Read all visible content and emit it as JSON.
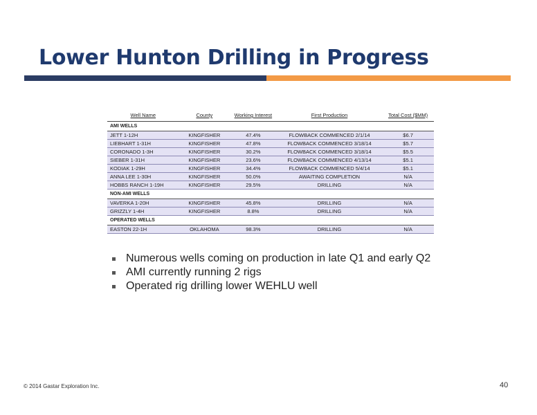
{
  "title": "Lower Hunton Drilling in Progress",
  "colors": {
    "title": "#1f3a6e",
    "rule_left": "#2b3c63",
    "rule_right": "#f39a46",
    "row_fill": "#e4e2f4"
  },
  "table": {
    "headers": [
      "Well Name",
      "County",
      "Working Interest",
      "First Production",
      "Total Cost ($MM)"
    ],
    "groups": [
      {
        "label": "AMI WELLS",
        "rows": [
          [
            "JETT 1-12H",
            "KINGFISHER",
            "47.4%",
            "FLOWBACK COMMENCED 2/1/14",
            "$6.7"
          ],
          [
            "LIEBHART 1-31H",
            "KINGFISHER",
            "47.8%",
            "FLOWBACK COMMENCED 3/18/14",
            "$5.7"
          ],
          [
            "CORONADO 1-3H",
            "KINGFISHER",
            "30.2%",
            "FLOWBACK COMMENCED 3/18/14",
            "$5.5"
          ],
          [
            "SIEBER 1-31H",
            "KINGFISHER",
            "23.6%",
            "FLOWBACK COMMENCED 4/13/14",
            "$5.1"
          ],
          [
            "KODIAK 1-29H",
            "KINGFISHER",
            "34.4%",
            "FLOWBACK COMMENCED 5/4/14",
            "$5.1"
          ],
          [
            "ANNA LEE 1-30H",
            "KINGFISHER",
            "50.0%",
            "AWAITING COMPLETION",
            "N/A"
          ],
          [
            "HOBBS RANCH 1-19H",
            "KINGFISHER",
            "29.5%",
            "DRILLING",
            "N/A"
          ]
        ]
      },
      {
        "label": "NON-AMI WELLS",
        "rows": [
          [
            "VAVERKA 1-20H",
            "KINGFISHER",
            "45.8%",
            "DRILLING",
            "N/A"
          ],
          [
            "GRIZZLY 1-4H",
            "KINGFISHER",
            "8.8%",
            "DRILLING",
            "N/A"
          ]
        ]
      },
      {
        "label": "OPERATED WELLS",
        "rows": [
          [
            "EASTON 22-1H",
            "OKLAHOMA",
            "98.3%",
            "DRILLING",
            "N/A"
          ]
        ]
      }
    ]
  },
  "bullets": [
    "Numerous wells coming on production in late Q1 and early Q2",
    "AMI currently running 2 rigs",
    "Operated rig drilling lower WEHLU well"
  ],
  "footer": "© 2014 Gastar Exploration Inc.",
  "page_number": "40"
}
